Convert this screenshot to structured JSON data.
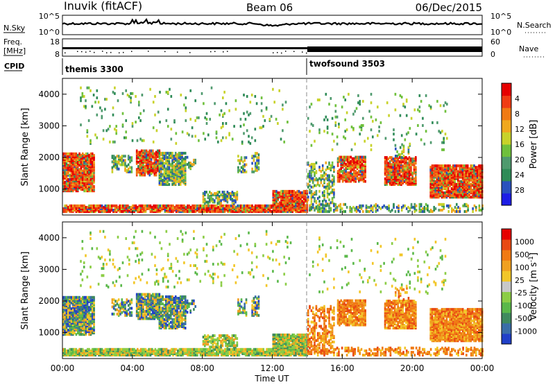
{
  "header": {
    "station": "Inuvik (fitACF)",
    "beam": "Beam 06",
    "date": "06/Dec/2015"
  },
  "noise_panel": {
    "left_label": "N.Sky",
    "right_label": "N.Search",
    "left_ticks": [
      "10^5",
      "10^0"
    ],
    "right_ticks": [
      "10^5",
      "10^0"
    ]
  },
  "freq_panel": {
    "left_label_1": "Freq.",
    "left_label_2": "[MHz]",
    "left_ticks": [
      "18",
      "8"
    ],
    "right_label": "Nave",
    "right_ticks": [
      "60",
      "0"
    ]
  },
  "cpid": {
    "label": "CPID",
    "entries": [
      {
        "name": "themis 3300",
        "start_hour": 0
      },
      {
        "name": "twofsound 3503",
        "start_hour": 14.0
      }
    ]
  },
  "chart_data": [
    {
      "type": "heatmap",
      "name": "power",
      "ylabel": "Slant Range [km]",
      "xlabel": "",
      "x_range_hours": [
        0,
        24
      ],
      "ylim": [
        180,
        4500
      ],
      "y_ticks": [
        "1000",
        "2000",
        "3000",
        "4000"
      ],
      "x_ticks": [
        "00:00",
        "04:00",
        "08:00",
        "12:00",
        "16:00",
        "20:00",
        "00:00"
      ],
      "colorbar": {
        "label": "Power [dB]",
        "tick_labels": [
          "4",
          "8",
          "12",
          "16",
          "20",
          "24",
          "28"
        ],
        "colors": [
          "#1e1ee6",
          "#2a52be",
          "#2e8b57",
          "#4f9a6e",
          "#6fc03c",
          "#c8d22a",
          "#f0a81e",
          "#f07a14",
          "#f03c14",
          "#e60000"
        ]
      }
    },
    {
      "type": "heatmap",
      "name": "velocity",
      "ylabel": "Slant Range [km]",
      "xlabel": "Time UT",
      "x_range_hours": [
        0,
        24
      ],
      "ylim": [
        180,
        4500
      ],
      "y_ticks": [
        "1000",
        "2000",
        "3000",
        "4000"
      ],
      "x_ticks": [
        "00:00",
        "04:00",
        "08:00",
        "12:00",
        "16:00",
        "20:00",
        "00:00"
      ],
      "colorbar": {
        "label": "Velocity [m s",
        "label_sup": "-1",
        "label_end": "]",
        "tick_labels": [
          "1000",
          "500",
          "100",
          "25",
          "-25",
          "-100",
          "-500",
          "-1000"
        ],
        "colors": [
          "#2040c8",
          "#3a6ea8",
          "#3f8a5e",
          "#5ab84a",
          "#8ccd46",
          "#c8c8c8",
          "#f2c628",
          "#f0a020",
          "#f07a14",
          "#e84a14",
          "#e60000"
        ]
      }
    }
  ]
}
